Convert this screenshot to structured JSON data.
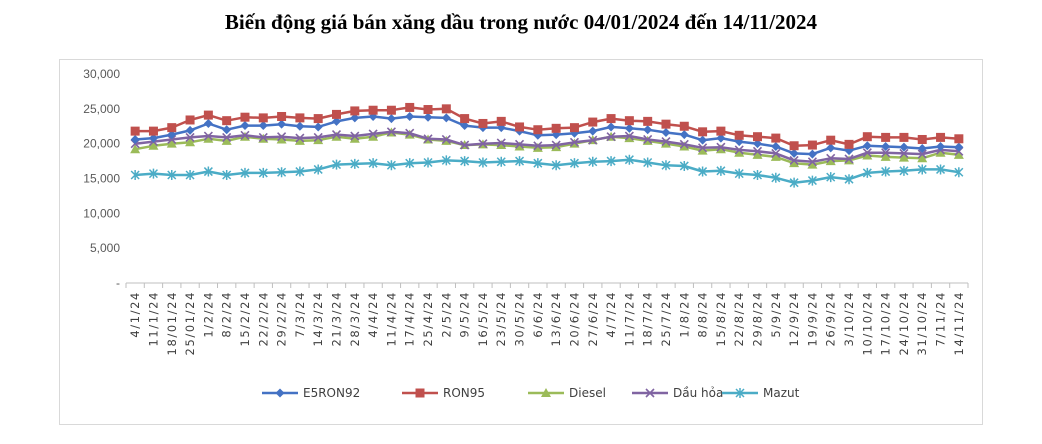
{
  "title": "Biến động giá bán xăng dầu trong nước 04/01/2024 đến 14/11/2024",
  "chart_data": {
    "type": "line",
    "title": "Biến động giá bán xăng dầu trong nước 04/01/2024 đến 14/11/2024",
    "xlabel": "",
    "ylabel": "",
    "ylim": [
      0,
      30000
    ],
    "yticks": [
      "-",
      "5,000",
      "10,000",
      "15,000",
      "20,000",
      "25,000",
      "30,000"
    ],
    "grid": false,
    "legend_position": "bottom",
    "categories": [
      "4/1/24",
      "11/1/24",
      "18/01/24",
      "25/01/24",
      "1/2/24",
      "8/2/24",
      "15/2/24",
      "22/2/24",
      "29/2/24",
      "7/3/24",
      "14/3/24",
      "21/3/24",
      "28/3/24",
      "4/4/24",
      "11/4/24",
      "17/4/24",
      "25/4/24",
      "2/5/24",
      "9/5/24",
      "16/5/24",
      "23/5/24",
      "30/5/24",
      "6/6/24",
      "13/6/24",
      "20/6/24",
      "27/6/24",
      "4/7/24",
      "11/7/24",
      "18/7/24",
      "25/7/24",
      "1/8/24",
      "8/8/24",
      "15/8/24",
      "22/8/24",
      "29/8/24",
      "5/9/24",
      "12/9/24",
      "19/9/24",
      "26/9/24",
      "3/10/24",
      "10/10/24",
      "17/10/24",
      "24/10/24",
      "31/10/24",
      "7/11/24",
      "14/11/24"
    ],
    "series": [
      {
        "name": "E5RON92",
        "color": "#4472c4",
        "marker": "diamond",
        "values": [
          20600,
          20800,
          21300,
          21900,
          22900,
          22000,
          22600,
          22600,
          22800,
          22500,
          22400,
          23200,
          23700,
          23900,
          23600,
          23900,
          23800,
          23700,
          22600,
          22300,
          22300,
          21800,
          21200,
          21300,
          21500,
          21800,
          22400,
          22200,
          22000,
          21600,
          21300,
          20500,
          20800,
          20300,
          20000,
          19600,
          18600,
          18500,
          19400,
          19000,
          19700,
          19600,
          19500,
          19300,
          19600,
          19500
        ]
      },
      {
        "name": "RON95",
        "color": "#c0504d",
        "marker": "square",
        "values": [
          21800,
          21800,
          22300,
          23400,
          24100,
          23300,
          23800,
          23700,
          23900,
          23700,
          23600,
          24200,
          24700,
          24800,
          24800,
          25200,
          24900,
          25000,
          23600,
          22900,
          23200,
          22400,
          22000,
          22200,
          22300,
          23100,
          23600,
          23300,
          23200,
          22800,
          22500,
          21700,
          21800,
          21200,
          21000,
          20800,
          19700,
          19800,
          20500,
          19900,
          21000,
          20900,
          20900,
          20600,
          20900,
          20700
        ]
      },
      {
        "name": "Diesel",
        "color": "#9bbb59",
        "marker": "triangle",
        "values": [
          19200,
          19700,
          20000,
          20200,
          20700,
          20400,
          21000,
          20700,
          20600,
          20400,
          20500,
          21000,
          20700,
          21000,
          21600,
          21300,
          20600,
          20400,
          19800,
          19900,
          19800,
          19600,
          19400,
          19500,
          20000,
          20500,
          21000,
          20800,
          20400,
          20000,
          19600,
          19000,
          19200,
          18700,
          18400,
          18100,
          17200,
          17000,
          17500,
          17600,
          18300,
          18100,
          18000,
          17900,
          18700,
          18400
        ]
      },
      {
        "name": "Dầu hỏa",
        "color": "#8064a2",
        "marker": "x",
        "values": [
          20000,
          20300,
          20600,
          20900,
          21100,
          20900,
          21200,
          20900,
          21000,
          20800,
          20900,
          21300,
          21100,
          21400,
          21700,
          21500,
          20700,
          20600,
          19800,
          20000,
          20100,
          19900,
          19700,
          19800,
          20200,
          20500,
          21000,
          21100,
          20600,
          20300,
          19900,
          19400,
          19500,
          19100,
          18900,
          18600,
          17600,
          17400,
          17900,
          17800,
          18700,
          18700,
          18600,
          18500,
          19100,
          18900
        ]
      },
      {
        "name": "Mazut",
        "color": "#4bacc6",
        "marker": "star",
        "values": [
          15500,
          15700,
          15500,
          15500,
          16000,
          15500,
          15800,
          15800,
          15900,
          16000,
          16300,
          17000,
          17100,
          17200,
          16900,
          17200,
          17300,
          17600,
          17500,
          17300,
          17400,
          17500,
          17200,
          16900,
          17200,
          17400,
          17500,
          17700,
          17300,
          16900,
          16800,
          16000,
          16100,
          15700,
          15500,
          15100,
          14400,
          14700,
          15200,
          14900,
          15800,
          16000,
          16100,
          16300,
          16300,
          15900
        ]
      }
    ]
  }
}
